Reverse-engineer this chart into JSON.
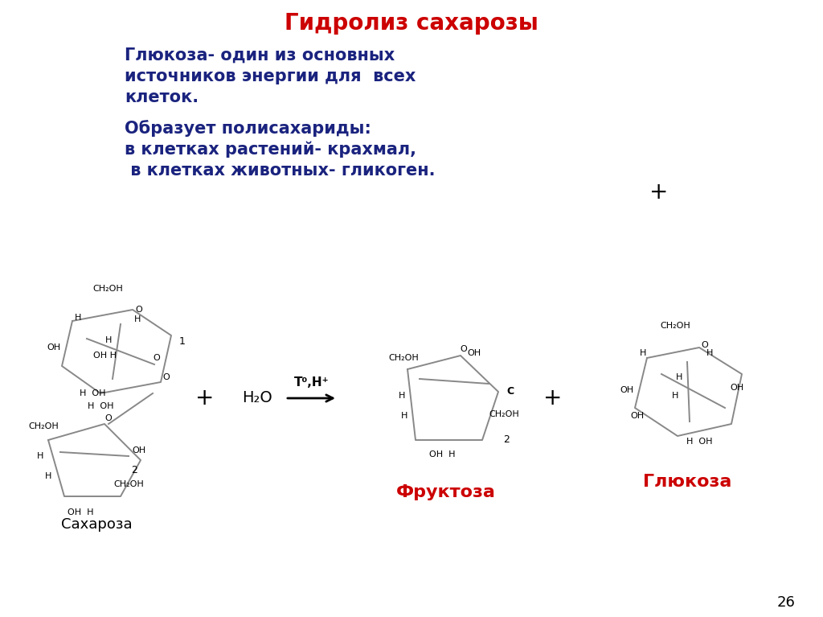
{
  "title": "Гидролиз сахарозы",
  "title_color": "#cc0000",
  "title_fontsize": 20,
  "text_color_dark_blue": "#1a237e",
  "text_color_black": "#000000",
  "text_color_red": "#cc0000",
  "bg_color": "#ffffff",
  "text1_line1": "Глюкоза- один из основных",
  "text1_line2": "источников энергии для  всех",
  "text1_line3": "клеток.",
  "text2_line1": "Образует полисахариды:",
  "text2_line2": "в клетках растений- крахмал,",
  "text2_line3": " в клетках животных- гликоген.",
  "label_sucrose": "Сахароза",
  "label_fructose": "Фруктоза",
  "label_glucose": "Глюкоза",
  "page_number": "26"
}
